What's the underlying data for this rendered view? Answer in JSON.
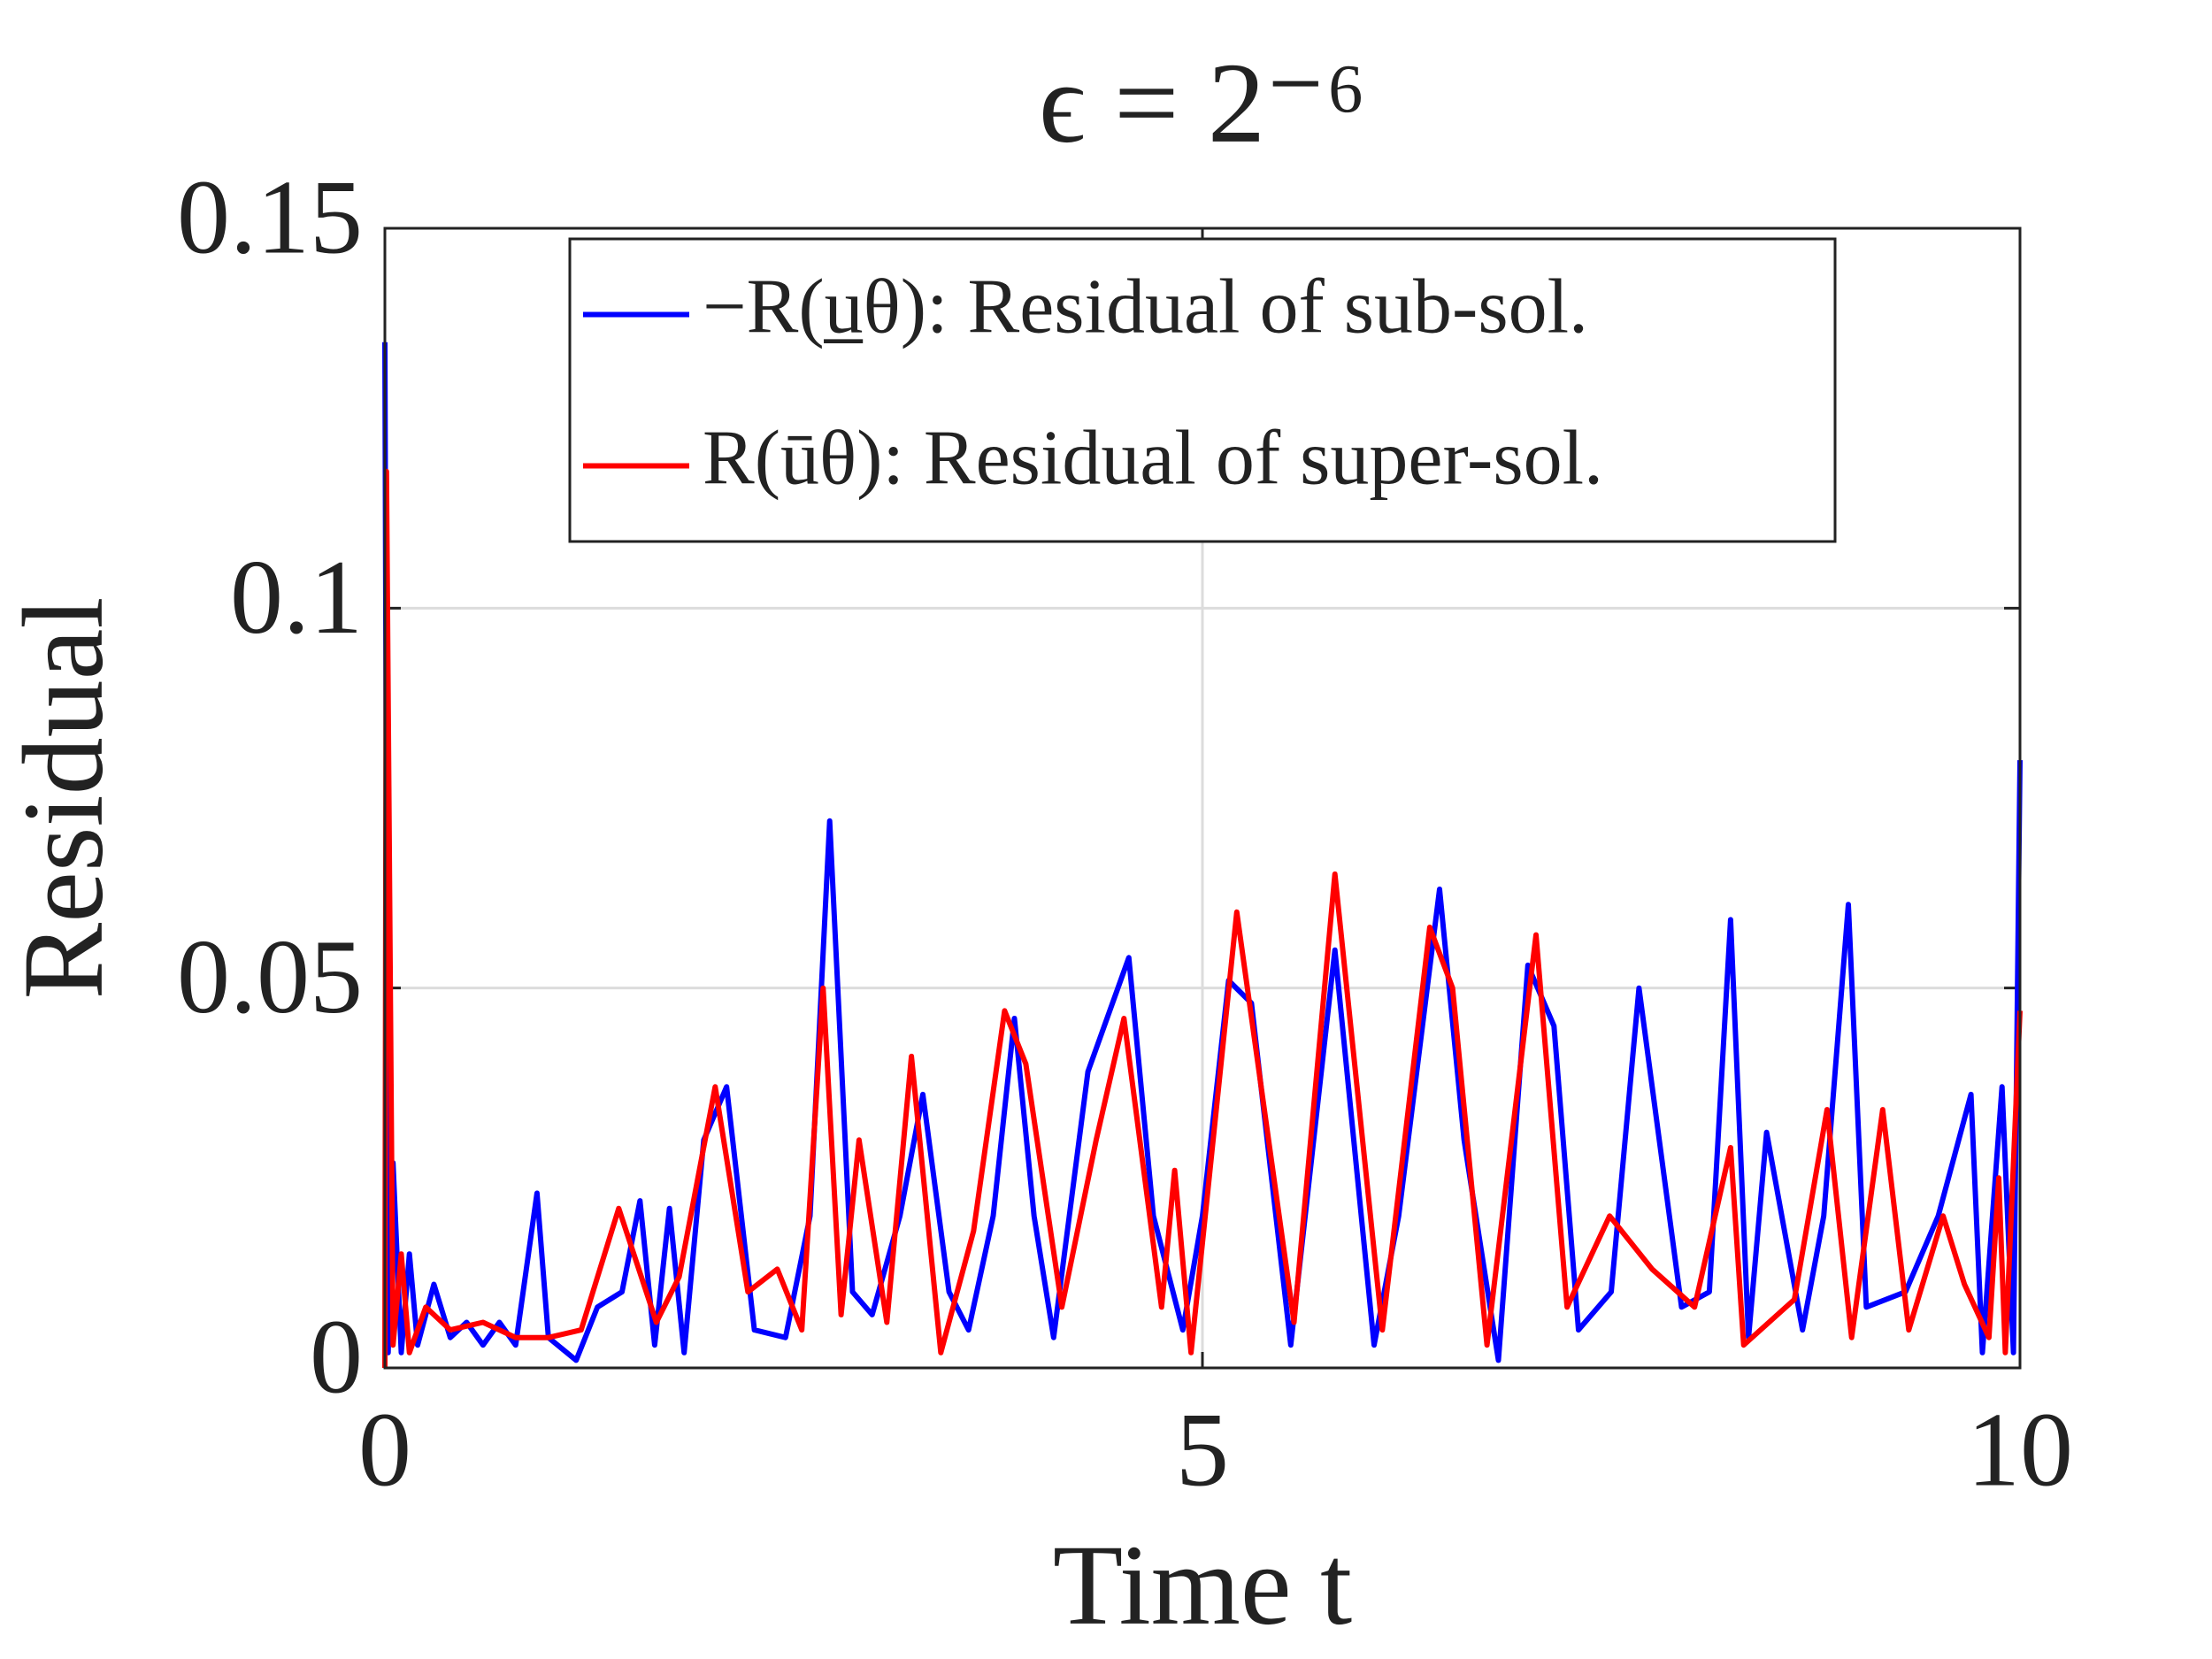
{
  "chart_data": {
    "type": "line",
    "title": "ϵ = 2⁻⁶",
    "xlabel": "Time t",
    "ylabel": "Residual",
    "xlim": [
      0,
      10
    ],
    "xticks": [
      0,
      5,
      10
    ],
    "ylim": [
      0,
      0.15
    ],
    "yticks": [
      0,
      0.05,
      0.1,
      0.15
    ],
    "grid": true,
    "legend": "top-right",
    "series": [
      {
        "name": "−R(u̲θ): Residual of sub-sol.",
        "color": "#0000ff",
        "x": [
          0,
          0.02,
          0.05,
          0.1,
          0.15,
          0.2,
          0.3,
          0.4,
          0.5,
          0.6,
          0.7,
          0.8,
          0.93,
          1.0,
          1.17,
          1.3,
          1.45,
          1.56,
          1.65,
          1.74,
          1.83,
          1.95,
          2.09,
          2.26,
          2.45,
          2.6,
          2.72,
          2.86,
          2.98,
          3.15,
          3.29,
          3.45,
          3.57,
          3.72,
          3.85,
          3.97,
          4.09,
          4.3,
          4.55,
          4.7,
          4.88,
          5.0,
          5.16,
          5.3,
          5.54,
          5.81,
          6.05,
          6.2,
          6.45,
          6.6,
          6.81,
          6.99,
          7.15,
          7.3,
          7.5,
          7.67,
          7.93,
          8.1,
          8.23,
          8.34,
          8.45,
          8.67,
          8.8,
          8.95,
          9.06,
          9.3,
          9.5,
          9.7,
          9.77,
          9.89,
          9.96,
          10
        ],
        "values": [
          0.135,
          0.002,
          0.027,
          0.002,
          0.015,
          0.003,
          0.011,
          0.004,
          0.006,
          0.003,
          0.006,
          0.003,
          0.023,
          0.004,
          0.001,
          0.008,
          0.01,
          0.022,
          0.003,
          0.021,
          0.002,
          0.03,
          0.037,
          0.005,
          0.004,
          0.02,
          0.072,
          0.01,
          0.007,
          0.02,
          0.036,
          0.01,
          0.005,
          0.02,
          0.046,
          0.02,
          0.004,
          0.039,
          0.054,
          0.02,
          0.005,
          0.02,
          0.051,
          0.048,
          0.003,
          0.055,
          0.003,
          0.02,
          0.063,
          0.03,
          0.001,
          0.053,
          0.045,
          0.005,
          0.01,
          0.05,
          0.008,
          0.01,
          0.059,
          0.004,
          0.031,
          0.005,
          0.02,
          0.061,
          0.008,
          0.01,
          0.02,
          0.036,
          0.002,
          0.037,
          0.002,
          0.08
        ]
      },
      {
        "name": "R(ūθ): Residual of super-sol.",
        "color": "#ff0000",
        "x": [
          0,
          0.01,
          0.05,
          0.1,
          0.15,
          0.25,
          0.4,
          0.6,
          0.8,
          1.0,
          1.2,
          1.43,
          1.66,
          1.8,
          2.02,
          2.22,
          2.4,
          2.55,
          2.68,
          2.79,
          2.9,
          3.07,
          3.22,
          3.4,
          3.6,
          3.79,
          3.92,
          4.14,
          4.35,
          4.52,
          4.75,
          4.83,
          4.93,
          5.21,
          5.56,
          5.81,
          6.1,
          6.39,
          6.53,
          6.74,
          7.04,
          7.23,
          7.49,
          7.75,
          8.01,
          8.23,
          8.31,
          8.62,
          8.82,
          8.97,
          9.16,
          9.32,
          9.53,
          9.66,
          9.81,
          9.87,
          9.91,
          10
        ],
        "values": [
          0.0,
          0.118,
          0.003,
          0.015,
          0.002,
          0.008,
          0.005,
          0.006,
          0.004,
          0.004,
          0.005,
          0.021,
          0.006,
          0.012,
          0.037,
          0.01,
          0.013,
          0.005,
          0.05,
          0.007,
          0.03,
          0.006,
          0.041,
          0.002,
          0.018,
          0.047,
          0.04,
          0.008,
          0.03,
          0.046,
          0.008,
          0.026,
          0.002,
          0.06,
          0.006,
          0.065,
          0.005,
          0.058,
          0.05,
          0.003,
          0.057,
          0.008,
          0.02,
          0.013,
          0.008,
          0.029,
          0.003,
          0.009,
          0.034,
          0.004,
          0.034,
          0.005,
          0.02,
          0.011,
          0.004,
          0.025,
          0.002,
          0.047
        ]
      }
    ]
  }
}
